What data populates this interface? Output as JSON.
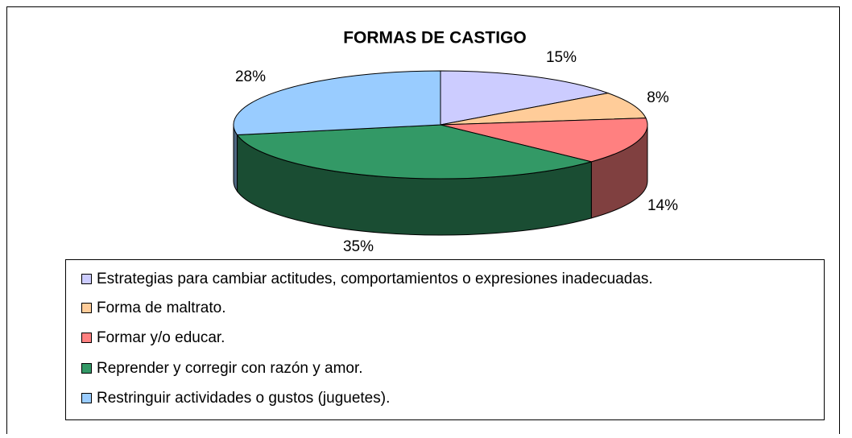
{
  "chart_data": {
    "type": "pie",
    "title": "FORMAS DE CASTIGO",
    "categories": [
      "Estrategias para cambiar actitudes, comportamientos o expresiones inadecuadas.",
      "Forma de maltrato.",
      "Formar y/o educar.",
      "Reprender y corregir con razón y amor.",
      "Restringuir actividades o gustos (juguetes)."
    ],
    "values": [
      15,
      8,
      14,
      35,
      28
    ],
    "value_labels": [
      "15%",
      "8%",
      "14%",
      "35%",
      "28%"
    ],
    "colors": [
      "#ccccff",
      "#ffcc99",
      "#ff8080",
      "#339966",
      "#99ccff"
    ],
    "legend": "bottom"
  }
}
